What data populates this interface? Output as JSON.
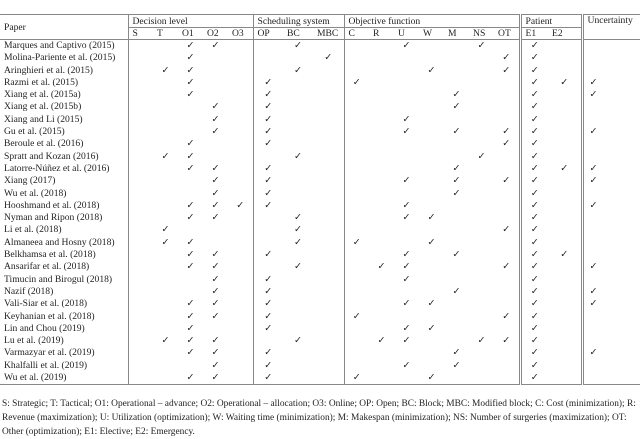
{
  "table": {
    "paper_header": "Paper",
    "groups": [
      {
        "label": "Decision level",
        "cols": [
          "S",
          "T",
          "O1",
          "O2",
          "O3"
        ]
      },
      {
        "label": "Scheduling system",
        "cols": [
          "OP",
          "BC",
          "MBC"
        ]
      },
      {
        "label": "Objective function",
        "cols": [
          "C",
          "R",
          "U",
          "W",
          "M",
          "NS",
          "OT"
        ]
      },
      {
        "label": "Patient",
        "cols": [
          "E1",
          "E2"
        ]
      }
    ],
    "uncertainty_header": "Uncertainty",
    "check_symbol": "✓",
    "rows": [
      {
        "paper": "Marques and Captivo (2015)",
        "marks": [
          "O1",
          "O2",
          "BC",
          "U",
          "NS",
          "E1"
        ]
      },
      {
        "paper": "Molina-Pariente et al. (2015)",
        "marks": [
          "O1",
          "MBC",
          "OT",
          "E1"
        ]
      },
      {
        "paper": "Aringhieri et al. (2015)",
        "marks": [
          "T",
          "O1",
          "BC",
          "W",
          "OT",
          "E1"
        ]
      },
      {
        "paper": "Razmi et al. (2015)",
        "marks": [
          "O1",
          "OP",
          "C",
          "E1",
          "E2",
          "UNC"
        ]
      },
      {
        "paper": "Xiang et al. (2015a)",
        "marks": [
          "O1",
          "OP",
          "M",
          "E1",
          "UNC"
        ]
      },
      {
        "paper": "Xiang et al. (2015b)",
        "marks": [
          "O2",
          "OP",
          "M",
          "E1"
        ]
      },
      {
        "paper": "Xiang and Li (2015)",
        "marks": [
          "O2",
          "OP",
          "U",
          "E1"
        ]
      },
      {
        "paper": "Gu et al. (2015)",
        "marks": [
          "O2",
          "OP",
          "U",
          "M",
          "OT",
          "E1",
          "UNC"
        ]
      },
      {
        "paper": "Beroule et al. (2016)",
        "marks": [
          "O1",
          "OP",
          "OT",
          "E1"
        ]
      },
      {
        "paper": "Spratt and Kozan (2016)",
        "marks": [
          "T",
          "O1",
          "BC",
          "NS",
          "E1"
        ]
      },
      {
        "paper": "Latorre-Núñez et al. (2016)",
        "marks": [
          "O1",
          "O2",
          "OP",
          "M",
          "E1",
          "E2",
          "UNC"
        ]
      },
      {
        "paper": "Xiang (2017)",
        "marks": [
          "O2",
          "OP",
          "U",
          "M",
          "OT",
          "E1",
          "UNC"
        ]
      },
      {
        "paper": "Wu et al. (2018)",
        "marks": [
          "O2",
          "OP",
          "M",
          "E1"
        ]
      },
      {
        "paper": "Hooshmand et al. (2018)",
        "marks": [
          "O1",
          "O2",
          "O3",
          "OP",
          "U",
          "E1",
          "UNC"
        ]
      },
      {
        "paper": "Nyman and Ripon (2018)",
        "marks": [
          "O1",
          "O2",
          "BC",
          "U",
          "W",
          "E1"
        ]
      },
      {
        "paper": "Li et al. (2018)",
        "marks": [
          "T",
          "BC",
          "OT",
          "E1"
        ]
      },
      {
        "paper": "Almaneea and Hosny (2018)",
        "marks": [
          "T",
          "O1",
          "BC",
          "C",
          "W",
          "E1"
        ]
      },
      {
        "paper": "Belkhamsa et al. (2018)",
        "marks": [
          "O1",
          "O2",
          "OP",
          "U",
          "M",
          "E1",
          "E2"
        ]
      },
      {
        "paper": "Ansarifar et al. (2018)",
        "marks": [
          "O1",
          "O2",
          "BC",
          "R",
          "U",
          "OT",
          "E1",
          "UNC"
        ]
      },
      {
        "paper": "Timucin and Birogul (2018)",
        "marks": [
          "O2",
          "OP",
          "U",
          "E1"
        ]
      },
      {
        "paper": "Nazif (2018)",
        "marks": [
          "O2",
          "OP",
          "M",
          "E1",
          "UNC"
        ]
      },
      {
        "paper": "Vali-Siar et al. (2018)",
        "marks": [
          "O1",
          "O2",
          "OP",
          "U",
          "W",
          "E1",
          "UNC"
        ]
      },
      {
        "paper": "Keyhanian et al. (2018)",
        "marks": [
          "O1",
          "O2",
          "OP",
          "C",
          "OT",
          "E1"
        ]
      },
      {
        "paper": "Lin and Chou (2019)",
        "marks": [
          "O1",
          "OP",
          "U",
          "W",
          "E1"
        ]
      },
      {
        "paper": "Lu et al. (2019)",
        "marks": [
          "T",
          "O1",
          "O2",
          "BC",
          "R",
          "U",
          "NS",
          "OT",
          "E1"
        ]
      },
      {
        "paper": "Varmazyar et al. (2019)",
        "marks": [
          "O1",
          "O2",
          "OP",
          "M",
          "E1",
          "UNC"
        ]
      },
      {
        "paper": "Khalfalli et al. (2019)",
        "marks": [
          "O2",
          "OP",
          "U",
          "M",
          "E1"
        ]
      },
      {
        "paper": "Wu et al. (2019)",
        "marks": [
          "O1",
          "O2",
          "OP",
          "C",
          "W",
          "E1"
        ]
      }
    ]
  },
  "footnote": "S: Strategic; T: Tactical; O1: Operational – advance; O2: Operational – allocation; O3: Online; OP: Open; BC: Block; MBC: Modified block; C: Cost (minimization); R: Revenue (maximization); U: Utilization (optimization); W: Waiting time (minimization); M: Makespan (minimization); NS: Number of surgeries (maximization); OT: Other (optimization); E1: Elective; E2: Emergency."
}
